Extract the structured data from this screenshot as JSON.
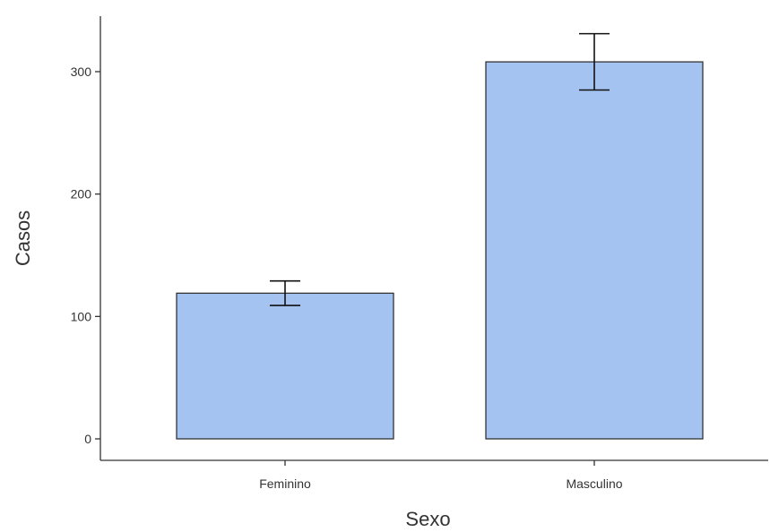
{
  "chart_data": {
    "type": "bar",
    "categories": [
      "Feminino",
      "Masculino"
    ],
    "values": [
      119,
      308
    ],
    "error_bars": {
      "lower": [
        109,
        285
      ],
      "upper": [
        129,
        331
      ]
    },
    "xlabel": "Sexo",
    "ylabel": "Casos",
    "ylim": [
      0,
      340
    ],
    "yticks": [
      0,
      100,
      200,
      300
    ],
    "grid": false,
    "legend": "none",
    "colors": {
      "bar_fill": "#a4c3f0",
      "bar_stroke": "#333333",
      "axis": "#333333"
    }
  }
}
